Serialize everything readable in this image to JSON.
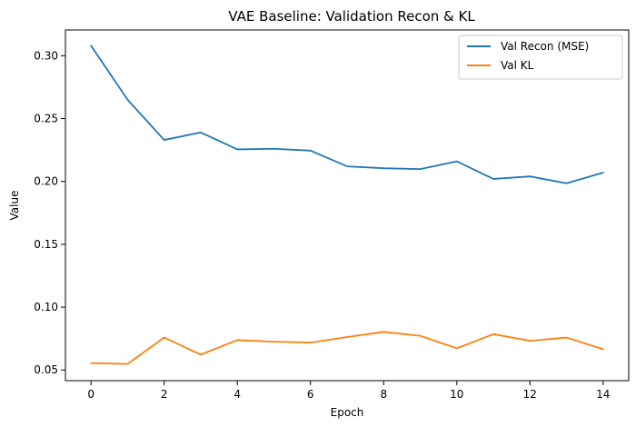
{
  "chart_data": {
    "type": "line",
    "title": "VAE Baseline: Validation Recon & KL",
    "xlabel": "Epoch",
    "ylabel": "Value",
    "xlim": [
      -0.7,
      14.7
    ],
    "ylim": [
      0.0415,
      0.3205
    ],
    "xticks": [
      0,
      2,
      4,
      6,
      8,
      10,
      12,
      14
    ],
    "yticks": [
      0.05,
      0.1,
      0.15,
      0.2,
      0.25,
      0.3
    ],
    "xtick_labels": [
      "0",
      "2",
      "4",
      "6",
      "8",
      "10",
      "12",
      "14"
    ],
    "ytick_labels": [
      "0.05",
      "0.10",
      "0.15",
      "0.20",
      "0.25",
      "0.30"
    ],
    "grid": false,
    "legend_position": "top-right",
    "x": [
      0,
      1,
      2,
      3,
      4,
      5,
      6,
      7,
      8,
      9,
      10,
      11,
      12,
      13,
      14
    ],
    "series": [
      {
        "name": "Val Recon (MSE)",
        "color": "#1f77b4",
        "values": [
          0.308,
          0.265,
          0.233,
          0.239,
          0.2255,
          0.226,
          0.2245,
          0.212,
          0.2105,
          0.2098,
          0.216,
          0.202,
          0.204,
          0.1985,
          0.207
        ]
      },
      {
        "name": "Val KL",
        "color": "#ff7f0e",
        "values": [
          0.0555,
          0.0548,
          0.0758,
          0.0622,
          0.0738,
          0.0725,
          0.0718,
          0.0762,
          0.0803,
          0.0772,
          0.0672,
          0.0785,
          0.0732,
          0.0758,
          0.0665
        ]
      }
    ]
  }
}
